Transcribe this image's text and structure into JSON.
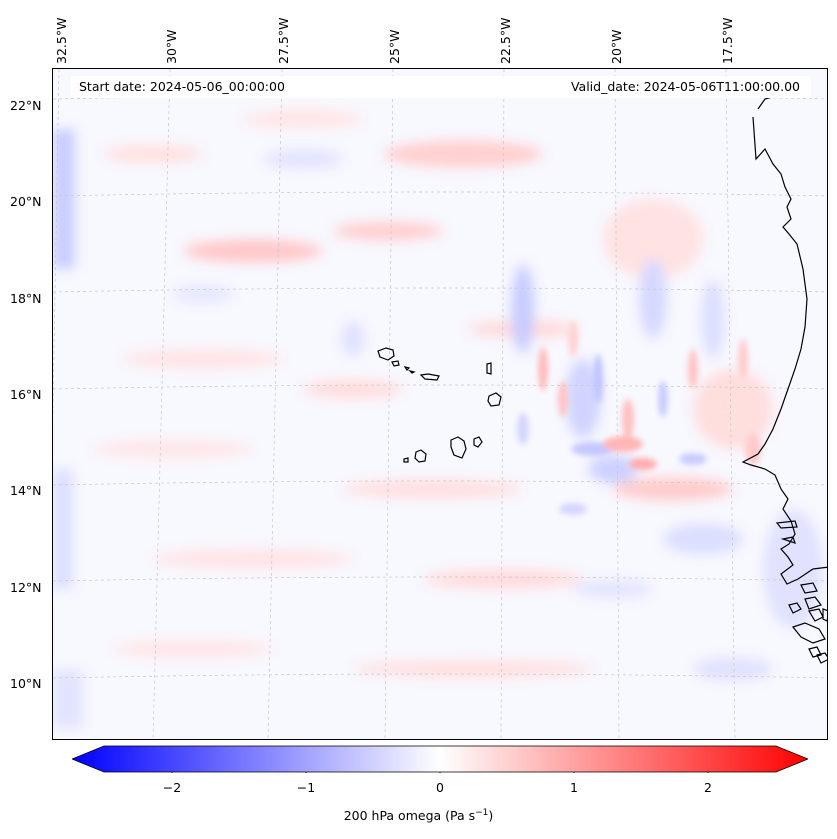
{
  "header": {
    "start_date": "Start date: 2024-05-06_00:00:00",
    "valid_date": "Valid_date: 2024-05-06T11:00:00.00"
  },
  "map": {
    "lon_labels": [
      "32.5°W",
      "30°W",
      "27.5°W",
      "25°W",
      "22.5°W",
      "20°W",
      "17.5°W"
    ],
    "lat_labels": [
      "22°N",
      "20°N",
      "18°N",
      "16°N",
      "14°N",
      "12°N",
      "10°N"
    ],
    "gridlines": true,
    "field": "200 hPa omega",
    "coastline_color": "#000000"
  },
  "colorbar": {
    "label": "200 hPa omega (Pa s",
    "label_sup": "−1",
    "label_end": ")",
    "range": [
      -2.5,
      2.5
    ],
    "extend": "both",
    "ticks": [
      "−2",
      "−1",
      "0",
      "1",
      "2"
    ],
    "tick_values": [
      -2,
      -1,
      0,
      1,
      2
    ],
    "colormap": [
      "#0000ff",
      "#ffffff",
      "#ff0000"
    ]
  }
}
